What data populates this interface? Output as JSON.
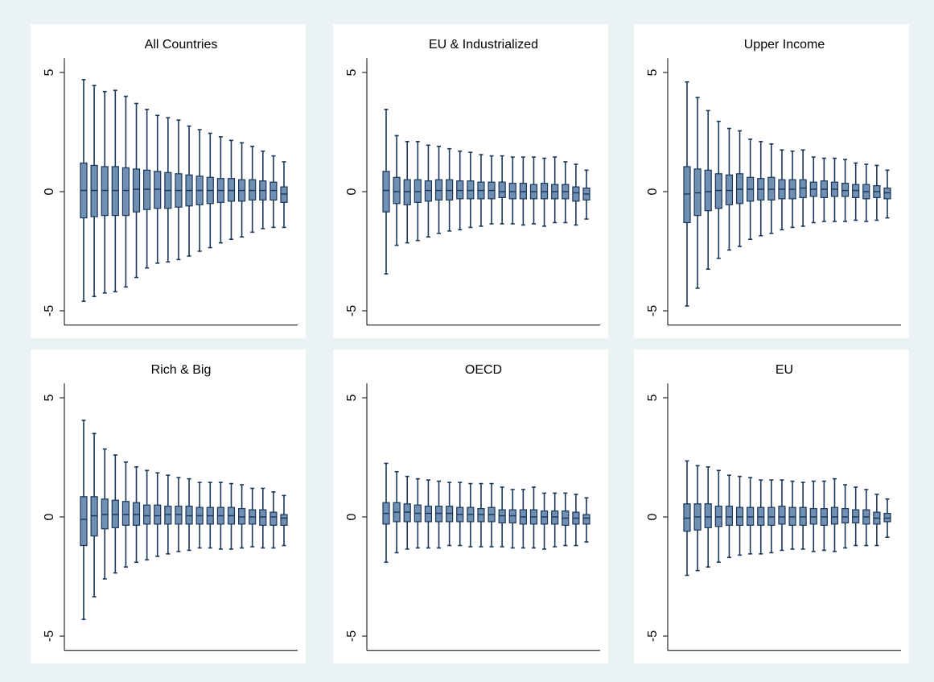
{
  "chart_data": [
    {
      "type": "box",
      "title": "All Countries",
      "color": "#6f8fb3",
      "edge_color": "#1a3658",
      "ylim": [
        -5.6,
        5.6
      ],
      "yticks": [
        -5,
        0,
        5
      ],
      "max": [
        4.7,
        4.45,
        4.2,
        4.25,
        4.0,
        3.7,
        3.45,
        3.2,
        3.1,
        3.0,
        2.75,
        2.6,
        2.45,
        2.3,
        2.15,
        2.05,
        1.9,
        1.7,
        1.5,
        1.25
      ],
      "q3": [
        1.2,
        1.1,
        1.05,
        1.05,
        1.0,
        0.95,
        0.9,
        0.85,
        0.8,
        0.75,
        0.7,
        0.65,
        0.6,
        0.55,
        0.55,
        0.5,
        0.5,
        0.45,
        0.4,
        0.2
      ],
      "median": [
        0.05,
        0.05,
        0.05,
        0.05,
        0.05,
        0.1,
        0.1,
        0.1,
        0.05,
        0.05,
        0.05,
        0.05,
        0.05,
        0.05,
        0.05,
        0.05,
        0.05,
        0.05,
        0.05,
        -0.1
      ],
      "q1": [
        -1.1,
        -1.05,
        -1.0,
        -1.0,
        -1.0,
        -0.85,
        -0.75,
        -0.7,
        -0.7,
        -0.65,
        -0.6,
        -0.55,
        -0.5,
        -0.45,
        -0.4,
        -0.4,
        -0.35,
        -0.35,
        -0.35,
        -0.45
      ],
      "min": [
        -4.6,
        -4.4,
        -4.25,
        -4.2,
        -4.0,
        -3.6,
        -3.2,
        -3.0,
        -2.95,
        -2.85,
        -2.7,
        -2.5,
        -2.35,
        -2.15,
        -2.0,
        -1.9,
        -1.7,
        -1.55,
        -1.5,
        -1.5
      ]
    },
    {
      "type": "box",
      "title": "EU & Industrialized",
      "color": "#6f8fb3",
      "edge_color": "#1a3658",
      "ylim": [
        -5.6,
        5.6
      ],
      "yticks": [
        -5,
        0,
        5
      ],
      "max": [
        3.45,
        2.35,
        2.1,
        2.1,
        1.95,
        1.9,
        1.8,
        1.7,
        1.65,
        1.55,
        1.5,
        1.5,
        1.45,
        1.45,
        1.45,
        1.4,
        1.45,
        1.25,
        1.15,
        0.9
      ],
      "q3": [
        0.85,
        0.6,
        0.5,
        0.5,
        0.45,
        0.5,
        0.5,
        0.45,
        0.45,
        0.4,
        0.4,
        0.4,
        0.35,
        0.35,
        0.3,
        0.35,
        0.3,
        0.3,
        0.2,
        0.15
      ],
      "median": [
        0.05,
        0,
        0,
        0,
        0.05,
        0.05,
        0.05,
        0.05,
        0.05,
        0.05,
        0.05,
        0,
        0,
        0,
        0,
        0,
        0,
        0,
        -0.05,
        -0.1
      ],
      "q1": [
        -0.85,
        -0.5,
        -0.55,
        -0.45,
        -0.4,
        -0.35,
        -0.35,
        -0.3,
        -0.3,
        -0.3,
        -0.3,
        -0.25,
        -0.3,
        -0.3,
        -0.3,
        -0.3,
        -0.3,
        -0.3,
        -0.4,
        -0.35
      ],
      "min": [
        -3.45,
        -2.25,
        -2.15,
        -2.05,
        -1.9,
        -1.75,
        -1.65,
        -1.6,
        -1.5,
        -1.45,
        -1.35,
        -1.35,
        -1.35,
        -1.4,
        -1.35,
        -1.45,
        -1.3,
        -1.3,
        -1.4,
        -1.15
      ]
    },
    {
      "type": "box",
      "title": "Upper Income",
      "color": "#6f8fb3",
      "edge_color": "#1a3658",
      "ylim": [
        -5.6,
        5.6
      ],
      "yticks": [
        -5,
        0,
        5
      ],
      "max": [
        4.6,
        3.95,
        3.4,
        2.95,
        2.65,
        2.55,
        2.2,
        2.1,
        2.0,
        1.75,
        1.7,
        1.75,
        1.45,
        1.4,
        1.4,
        1.35,
        1.2,
        1.15,
        1.1,
        0.9
      ],
      "q3": [
        1.05,
        0.95,
        0.9,
        0.75,
        0.7,
        0.75,
        0.6,
        0.55,
        0.6,
        0.5,
        0.5,
        0.5,
        0.4,
        0.45,
        0.4,
        0.35,
        0.3,
        0.3,
        0.25,
        0.15
      ],
      "median": [
        -0.1,
        -0.05,
        0.0,
        0.05,
        0.05,
        0.1,
        0.1,
        0.1,
        0.1,
        0.1,
        0.1,
        0.15,
        0.1,
        0.1,
        0.1,
        0.05,
        0.05,
        0.0,
        0.0,
        -0.05
      ],
      "q1": [
        -1.3,
        -1.0,
        -0.8,
        -0.7,
        -0.55,
        -0.5,
        -0.4,
        -0.35,
        -0.35,
        -0.3,
        -0.3,
        -0.25,
        -0.2,
        -0.25,
        -0.2,
        -0.2,
        -0.25,
        -0.3,
        -0.25,
        -0.3
      ],
      "min": [
        -4.8,
        -4.05,
        -3.25,
        -2.8,
        -2.45,
        -2.3,
        -2.0,
        -1.85,
        -1.75,
        -1.6,
        -1.5,
        -1.45,
        -1.3,
        -1.25,
        -1.25,
        -1.25,
        -1.2,
        -1.25,
        -1.2,
        -1.1
      ]
    },
    {
      "type": "box",
      "title": "Rich & Big",
      "color": "#6f8fb3",
      "edge_color": "#1a3658",
      "ylim": [
        -5.6,
        5.6
      ],
      "yticks": [
        -5,
        0,
        5
      ],
      "max": [
        4.05,
        3.5,
        2.85,
        2.6,
        2.3,
        2.1,
        1.95,
        1.85,
        1.75,
        1.65,
        1.6,
        1.45,
        1.45,
        1.45,
        1.4,
        1.35,
        1.2,
        1.2,
        1.05,
        0.9
      ],
      "q3": [
        0.85,
        0.85,
        0.75,
        0.7,
        0.65,
        0.6,
        0.5,
        0.5,
        0.45,
        0.45,
        0.45,
        0.4,
        0.4,
        0.4,
        0.4,
        0.35,
        0.3,
        0.3,
        0.2,
        0.1
      ],
      "median": [
        -0.1,
        0.05,
        0.1,
        0.1,
        0.1,
        0.1,
        0.05,
        0.05,
        0.1,
        0.1,
        0.05,
        0.05,
        0.05,
        0.05,
        0.05,
        0.0,
        0.0,
        0.0,
        0.0,
        -0.05
      ],
      "q1": [
        -1.2,
        -0.8,
        -0.5,
        -0.45,
        -0.35,
        -0.35,
        -0.3,
        -0.3,
        -0.3,
        -0.3,
        -0.3,
        -0.3,
        -0.3,
        -0.3,
        -0.3,
        -0.3,
        -0.3,
        -0.35,
        -0.35,
        -0.35
      ],
      "min": [
        -4.3,
        -3.35,
        -2.6,
        -2.35,
        -2.1,
        -1.9,
        -1.8,
        -1.65,
        -1.55,
        -1.45,
        -1.4,
        -1.3,
        -1.3,
        -1.35,
        -1.35,
        -1.3,
        -1.25,
        -1.3,
        -1.3,
        -1.2
      ]
    },
    {
      "type": "box",
      "title": "OECD",
      "color": "#6f8fb3",
      "edge_color": "#1a3658",
      "ylim": [
        -5.6,
        5.6
      ],
      "yticks": [
        -5,
        0,
        5
      ],
      "max": [
        2.25,
        1.9,
        1.7,
        1.6,
        1.55,
        1.5,
        1.45,
        1.45,
        1.4,
        1.4,
        1.4,
        1.25,
        1.15,
        1.15,
        1.25,
        1.0,
        1.0,
        1.0,
        0.95,
        0.8
      ],
      "q3": [
        0.6,
        0.6,
        0.55,
        0.5,
        0.45,
        0.45,
        0.45,
        0.4,
        0.4,
        0.35,
        0.4,
        0.3,
        0.3,
        0.3,
        0.3,
        0.25,
        0.25,
        0.25,
        0.2,
        0.1
      ],
      "median": [
        0.15,
        0.2,
        0.2,
        0.15,
        0.15,
        0.15,
        0.15,
        0.1,
        0.1,
        0.1,
        0.1,
        0.05,
        0.05,
        0.0,
        0.0,
        0.0,
        0.0,
        -0.05,
        -0.05,
        -0.05
      ],
      "q1": [
        -0.3,
        -0.2,
        -0.2,
        -0.2,
        -0.2,
        -0.2,
        -0.2,
        -0.2,
        -0.2,
        -0.2,
        -0.2,
        -0.25,
        -0.25,
        -0.3,
        -0.3,
        -0.3,
        -0.3,
        -0.35,
        -0.3,
        -0.3
      ],
      "min": [
        -1.9,
        -1.5,
        -1.35,
        -1.3,
        -1.3,
        -1.3,
        -1.2,
        -1.2,
        -1.25,
        -1.25,
        -1.25,
        -1.25,
        -1.3,
        -1.3,
        -1.3,
        -1.35,
        -1.25,
        -1.2,
        -1.2,
        -1.05
      ]
    },
    {
      "type": "box",
      "title": "EU",
      "color": "#6f8fb3",
      "edge_color": "#1a3658",
      "ylim": [
        -5.6,
        5.6
      ],
      "yticks": [
        -5,
        0,
        5
      ],
      "max": [
        2.35,
        2.15,
        2.1,
        1.95,
        1.75,
        1.7,
        1.65,
        1.55,
        1.55,
        1.55,
        1.5,
        1.45,
        1.5,
        1.5,
        1.6,
        1.35,
        1.25,
        1.15,
        0.95,
        0.75
      ],
      "q3": [
        0.55,
        0.55,
        0.55,
        0.45,
        0.45,
        0.4,
        0.4,
        0.4,
        0.4,
        0.45,
        0.4,
        0.4,
        0.35,
        0.35,
        0.4,
        0.35,
        0.3,
        0.3,
        0.2,
        0.15
      ],
      "median": [
        -0.05,
        0,
        0,
        0,
        0,
        0,
        0,
        0,
        0,
        0,
        0,
        0,
        0,
        0,
        0,
        0,
        0,
        0,
        -0.05,
        -0.05
      ],
      "q1": [
        -0.6,
        -0.55,
        -0.45,
        -0.4,
        -0.35,
        -0.35,
        -0.35,
        -0.35,
        -0.35,
        -0.3,
        -0.35,
        -0.35,
        -0.3,
        -0.35,
        -0.3,
        -0.25,
        -0.25,
        -0.3,
        -0.3,
        -0.2
      ],
      "min": [
        -2.45,
        -2.25,
        -2.1,
        -1.9,
        -1.7,
        -1.6,
        -1.55,
        -1.55,
        -1.5,
        -1.4,
        -1.35,
        -1.35,
        -1.45,
        -1.4,
        -1.45,
        -1.3,
        -1.2,
        -1.2,
        -1.2,
        -0.85
      ]
    }
  ]
}
